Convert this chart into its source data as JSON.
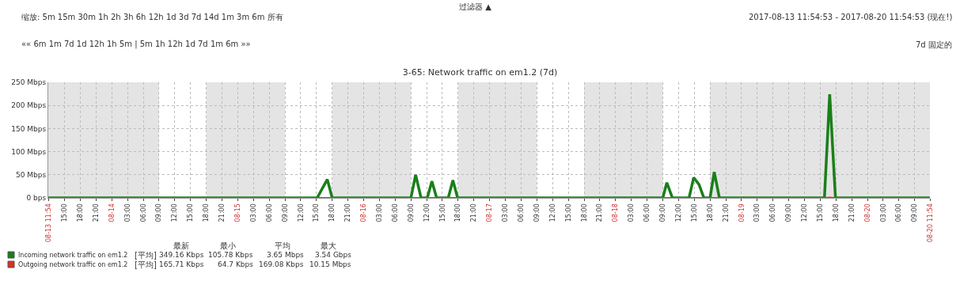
{
  "chart_data": {
    "type": "line",
    "title": "3-65: Network traffic on em1.2 (7d)",
    "xlim": [
      "2017-08-13T11:54",
      "2017-08-20T11:54"
    ],
    "ylim": [
      0,
      250
    ],
    "yticks": [
      {
        "value": 0,
        "label": "0 bps"
      },
      {
        "value": 50,
        "label": "50 Mbps"
      },
      {
        "value": 100,
        "label": "100 Mbps"
      },
      {
        "value": 150,
        "label": "150 Mbps"
      },
      {
        "value": 200,
        "label": "200 Mbps"
      },
      {
        "value": 250,
        "label": "250 Mbps"
      }
    ],
    "xticks": [
      {
        "value": "2017-08-13T11:54",
        "label": "08-13 11:54"
      },
      {
        "value": "2017-08-13T15:00",
        "label": "15:00"
      },
      {
        "value": "2017-08-13T18:00",
        "label": "18:00"
      },
      {
        "value": "2017-08-13T21:00",
        "label": "21:00"
      },
      {
        "value": "2017-08-14T00:00",
        "label": "08-14"
      },
      {
        "value": "2017-08-14T03:00",
        "label": "03:00"
      },
      {
        "value": "2017-08-14T06:00",
        "label": "06:00"
      },
      {
        "value": "2017-08-14T09:00",
        "label": "09:00"
      },
      {
        "value": "2017-08-14T12:00",
        "label": "12:00"
      },
      {
        "value": "2017-08-14T15:00",
        "label": "15:00"
      },
      {
        "value": "2017-08-14T18:00",
        "label": "18:00"
      },
      {
        "value": "2017-08-14T21:00",
        "label": "21:00"
      },
      {
        "value": "2017-08-15T00:00",
        "label": "08-15"
      },
      {
        "value": "2017-08-15T03:00",
        "label": "03:00"
      },
      {
        "value": "2017-08-15T06:00",
        "label": "06:00"
      },
      {
        "value": "2017-08-15T09:00",
        "label": "09:00"
      },
      {
        "value": "2017-08-15T12:00",
        "label": "12:00"
      },
      {
        "value": "2017-08-15T15:00",
        "label": "15:00"
      },
      {
        "value": "2017-08-15T18:00",
        "label": "18:00"
      },
      {
        "value": "2017-08-15T21:00",
        "label": "21:00"
      },
      {
        "value": "2017-08-16T00:00",
        "label": "08-16"
      },
      {
        "value": "2017-08-16T03:00",
        "label": "03:00"
      },
      {
        "value": "2017-08-16T06:00",
        "label": "06:00"
      },
      {
        "value": "2017-08-16T09:00",
        "label": "09:00"
      },
      {
        "value": "2017-08-16T12:00",
        "label": "12:00"
      },
      {
        "value": "2017-08-16T15:00",
        "label": "15:00"
      },
      {
        "value": "2017-08-16T18:00",
        "label": "18:00"
      },
      {
        "value": "2017-08-16T21:00",
        "label": "21:00"
      },
      {
        "value": "2017-08-17T00:00",
        "label": "08-17"
      },
      {
        "value": "2017-08-17T03:00",
        "label": "03:00"
      },
      {
        "value": "2017-08-17T06:00",
        "label": "06:00"
      },
      {
        "value": "2017-08-17T09:00",
        "label": "09:00"
      },
      {
        "value": "2017-08-17T12:00",
        "label": "12:00"
      },
      {
        "value": "2017-08-17T15:00",
        "label": "15:00"
      },
      {
        "value": "2017-08-17T18:00",
        "label": "18:00"
      },
      {
        "value": "2017-08-17T21:00",
        "label": "21:00"
      },
      {
        "value": "2017-08-18T00:00",
        "label": "08-18"
      },
      {
        "value": "2017-08-18T03:00",
        "label": "03:00"
      },
      {
        "value": "2017-08-18T06:00",
        "label": "06:00"
      },
      {
        "value": "2017-08-18T09:00",
        "label": "09:00"
      },
      {
        "value": "2017-08-18T12:00",
        "label": "12:00"
      },
      {
        "value": "2017-08-18T15:00",
        "label": "15:00"
      },
      {
        "value": "2017-08-18T18:00",
        "label": "18:00"
      },
      {
        "value": "2017-08-18T21:00",
        "label": "21:00"
      },
      {
        "value": "2017-08-19T00:00",
        "label": "08-19"
      },
      {
        "value": "2017-08-19T03:00",
        "label": "03:00"
      },
      {
        "value": "2017-08-19T06:00",
        "label": "06:00"
      },
      {
        "value": "2017-08-19T09:00",
        "label": "09:00"
      },
      {
        "value": "2017-08-19T12:00",
        "label": "12:00"
      },
      {
        "value": "2017-08-19T15:00",
        "label": "15:00"
      },
      {
        "value": "2017-08-19T18:00",
        "label": "18:00"
      },
      {
        "value": "2017-08-19T21:00",
        "label": "21:00"
      },
      {
        "value": "2017-08-20T00:00",
        "label": "08-20"
      },
      {
        "value": "2017-08-20T03:00",
        "label": "03:00"
      },
      {
        "value": "2017-08-20T06:00",
        "label": "06:00"
      },
      {
        "value": "2017-08-20T09:00",
        "label": "09:00"
      },
      {
        "value": "2017-08-20T11:54",
        "label": "08-20 11:54"
      }
    ],
    "grid": true,
    "legend": "bottom left",
    "series": [
      {
        "name": "Incoming network traffic on em1.2",
        "color": "#1a7f1a",
        "x": [
          "2017-08-13T11:54",
          "2017-08-15T15:08",
          "2017-08-15T17:04",
          "2017-08-15T18:00",
          "2017-08-16T09:00",
          "2017-08-16T09:54",
          "2017-08-16T10:56",
          "2017-08-16T12:07",
          "2017-08-16T13:00",
          "2017-08-16T13:54",
          "2017-08-16T16:07",
          "2017-08-16T17:00",
          "2017-08-16T17:54",
          "2017-08-18T09:00",
          "2017-08-18T09:46",
          "2017-08-18T10:50",
          "2017-08-18T14:00",
          "2017-08-18T14:53",
          "2017-08-18T15:54",
          "2017-08-18T16:50",
          "2017-08-18T18:00",
          "2017-08-18T18:48",
          "2017-08-18T19:47",
          "2017-08-19T15:48",
          "2017-08-19T16:48",
          "2017-08-19T17:54",
          "2017-08-20T11:54"
        ],
        "values": [
          0,
          0,
          40,
          0,
          0,
          50,
          0,
          0,
          36,
          0,
          0,
          38,
          0,
          0,
          33,
          0,
          0,
          44,
          29,
          0,
          0,
          56,
          0,
          0,
          224,
          0,
          0
        ]
      },
      {
        "name": "Outgoing network traffic on em1.2",
        "color": "#e03020",
        "x": [
          "2017-08-13T11:54",
          "2017-08-19T15:48",
          "2017-08-19T16:48",
          "2017-08-19T17:54",
          "2017-08-20T11:54"
        ],
        "values": [
          0,
          0,
          1,
          0,
          0
        ]
      }
    ],
    "bands": [
      {
        "axis": "x",
        "from": "2017-08-13T11:54",
        "to": "2017-08-14T09:00",
        "color": "#e4e4e4"
      },
      {
        "axis": "x",
        "from": "2017-08-14T18:00",
        "to": "2017-08-15T09:00",
        "color": "#e4e4e4"
      },
      {
        "axis": "x",
        "from": "2017-08-15T18:00",
        "to": "2017-08-16T09:00",
        "color": "#e4e4e4"
      },
      {
        "axis": "x",
        "from": "2017-08-16T18:00",
        "to": "2017-08-17T09:00",
        "color": "#e4e4e4"
      },
      {
        "axis": "x",
        "from": "2017-08-17T18:00",
        "to": "2017-08-18T09:00",
        "color": "#e4e4e4"
      },
      {
        "axis": "x",
        "from": "2017-08-18T18:00",
        "to": "2017-08-20T11:54",
        "color": "#e4e4e4"
      }
    ],
    "annotations": [
      "过滤器 ▲",
      "缩放: 5m 15m 30m 1h 2h 3h 6h 12h 1d 3d 7d 14d 1m 3m 6m 所有",
      "2017-08-13 11:54:53 - 2017-08-20 11:54:53 (现在!)",
      "«« 6m 1m 7d 1d 12h 1h 5m | 5m 1h 12h 1d 7d 1m 6m »»",
      "7d 固定的",
      "最新",
      "最小",
      "平均",
      "最大",
      "[平均]",
      "349.16 Kbps",
      "105.78 Kbps",
      "3.65 Mbps",
      "3.54 Gbps",
      "[平均]",
      "165.71 Kbps",
      "64.7 Kbps",
      "169.08 Kbps",
      "10.15 Mbps"
    ]
  }
}
